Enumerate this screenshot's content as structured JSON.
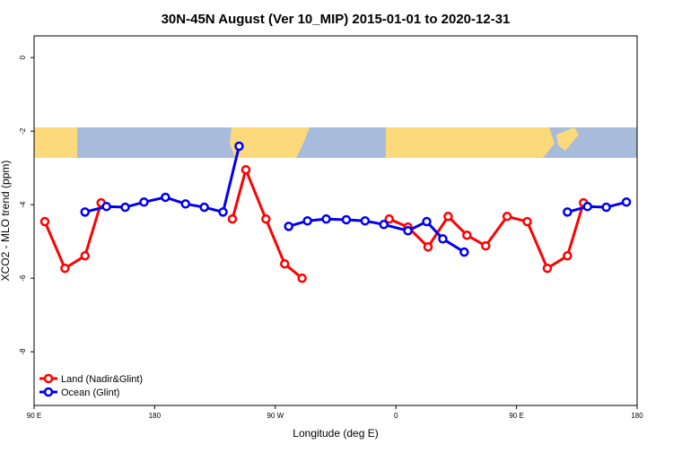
{
  "chart_data": {
    "type": "line",
    "title": "30N-45N August (Ver 10_MIP)   2015-01-01 to 2020-12-31",
    "x_label": "Longitude (deg E)",
    "y_label": "XCO2 - MLO trend (ppm)",
    "xlim": [
      90,
      540
    ],
    "xticks": [
      {
        "value": 90,
        "label": "90 E"
      },
      {
        "value": 180,
        "label": "180"
      },
      {
        "value": 270,
        "label": "90 W"
      },
      {
        "value": 360,
        "label": "0"
      },
      {
        "value": 450,
        "label": "90 E"
      },
      {
        "value": 540,
        "label": "180"
      }
    ],
    "ylim": [
      -9.46,
      0.59
    ],
    "yticks": [
      0,
      -2,
      -4,
      -6,
      -8
    ],
    "legend": "bottom-left",
    "series": [
      {
        "name": "Land (Nadir&Glint)",
        "color": "#ff0000",
        "x": [
          98,
          113,
          128,
          140,
          null,
          238,
          248,
          263,
          277,
          290,
          null,
          355,
          369,
          384,
          399,
          413,
          427,
          443,
          458,
          473,
          488,
          500
        ],
        "values": [
          -4.46,
          -5.73,
          -5.39,
          -3.95,
          null,
          -4.39,
          -3.05,
          -4.39,
          -5.61,
          -6.0,
          null,
          -4.39,
          -4.61,
          -5.15,
          -4.32,
          -4.83,
          -5.12,
          -4.32,
          -4.46,
          -5.73,
          -5.39,
          -3.95
        ]
      },
      {
        "name": "Ocean (Glint)",
        "color": "#0000ee",
        "x": [
          128,
          144,
          158,
          172,
          188,
          203,
          217,
          231,
          243,
          null,
          280,
          294,
          308,
          323,
          337,
          351,
          369,
          383,
          395,
          411,
          null,
          488,
          503,
          517,
          532
        ],
        "values": [
          -4.2,
          -4.05,
          -4.07,
          -3.93,
          -3.8,
          -3.98,
          -4.07,
          -4.2,
          -2.41,
          null,
          -4.59,
          -4.44,
          -4.39,
          -4.41,
          -4.44,
          -4.54,
          -4.71,
          -4.46,
          -4.93,
          -5.29,
          null,
          -4.2,
          -4.05,
          -4.07,
          -3.93
        ]
      }
    ]
  }
}
